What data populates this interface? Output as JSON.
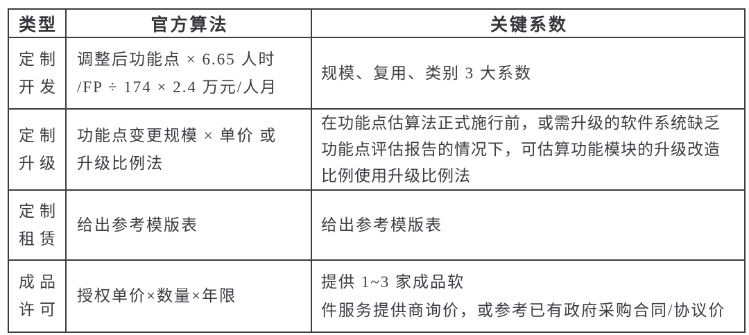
{
  "colors": {
    "border": "#3b3b41",
    "text": "#3c3c44",
    "background": "#ffffff"
  },
  "table": {
    "header": {
      "type": "类型",
      "algorithm": "官方算法",
      "coefficients": "关键系数"
    },
    "rows": [
      {
        "type": [
          "定制",
          "开发"
        ],
        "algorithm": [
          "调整后功能点 × 6.65 人时",
          "/FP ÷ 174 × 2.4 万元/人月"
        ],
        "coefficients": [
          "规模、复用、类别 3 大系数"
        ]
      },
      {
        "type": [
          "定制",
          "升级"
        ],
        "algorithm": [
          "功能点变更规模 × 单价 或",
          "升级比例法"
        ],
        "coefficients": [
          "在功能点估算法正式施行前，或需升级的软件系统缺乏",
          "功能点评估报告的情况下，可估算功能模块的升级改造",
          "比例使用升级比例法"
        ]
      },
      {
        "type": [
          "定制",
          "租赁"
        ],
        "algorithm": [
          "给出参考模版表"
        ],
        "coefficients": [
          "给出参考模版表"
        ]
      },
      {
        "type": [
          "成品",
          "许可"
        ],
        "algorithm": [
          "授权单价×数量×年限"
        ],
        "coefficients": [
          "提供 1~3 家成品软",
          "件服务提供商询价，或参考已有政府采购合同/协议价"
        ]
      }
    ]
  }
}
